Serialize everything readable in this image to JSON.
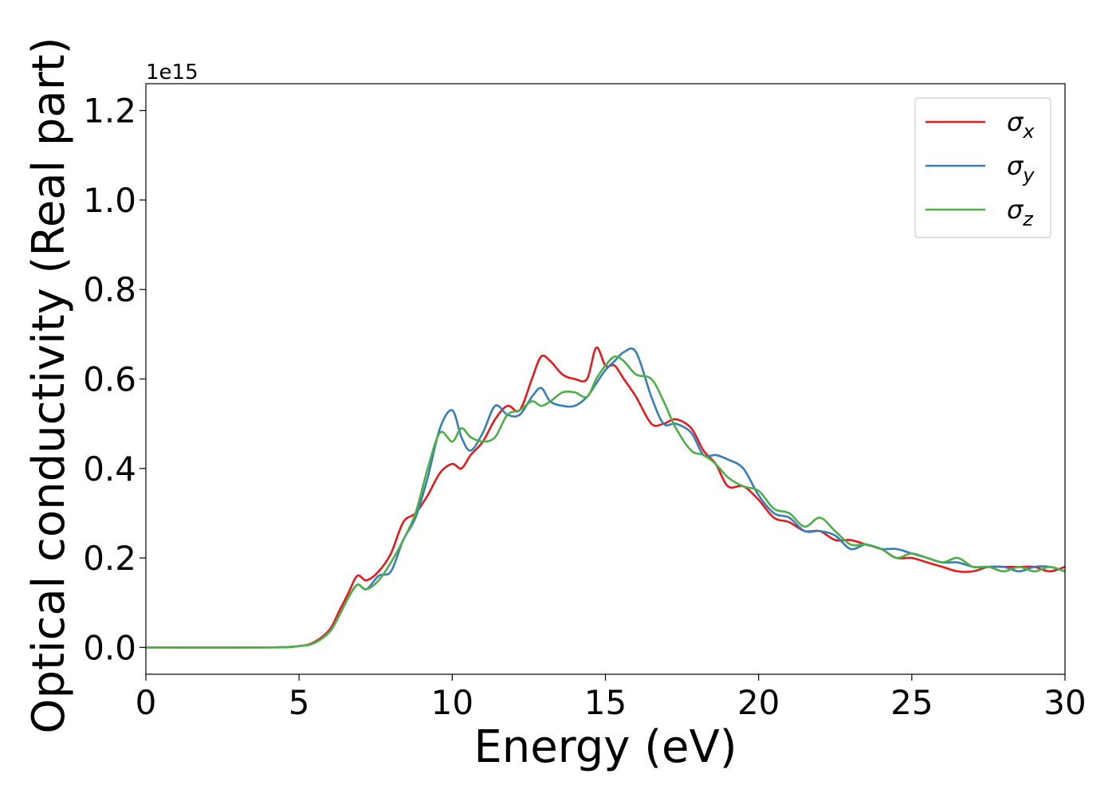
{
  "chart_data": {
    "type": "line",
    "xlabel": "Energy (eV)",
    "ylabel": "Optical conductivity (Real part)",
    "y_offset_label": "1e15",
    "xlim": [
      0,
      30
    ],
    "ylim": [
      -0.06,
      1.26
    ],
    "x_ticks": [
      0,
      5,
      10,
      15,
      20,
      25,
      30
    ],
    "y_ticks": [
      0.0,
      0.2,
      0.4,
      0.6,
      0.8,
      1.0,
      1.2
    ],
    "x_tick_labels": [
      "0",
      "5",
      "10",
      "15",
      "20",
      "25",
      "30"
    ],
    "y_tick_labels": [
      "0.0",
      "0.2",
      "0.4",
      "0.6",
      "0.8",
      "1.0",
      "1.2"
    ],
    "grid": false,
    "legend_position": "top-right",
    "series": [
      {
        "name": "σx",
        "legend_base": "σ",
        "legend_sub": "x",
        "color": "#e41a1c",
        "x": [
          0,
          4,
          5,
          5.5,
          6,
          6.3,
          6.6,
          6.9,
          7.2,
          7.6,
          8,
          8.4,
          8.8,
          9.2,
          9.6,
          10,
          10.3,
          10.6,
          11,
          11.4,
          11.8,
          12.2,
          12.6,
          12.9,
          13.2,
          13.6,
          14,
          14.4,
          14.7,
          15,
          15.3,
          15.6,
          16,
          16.5,
          16.9,
          17.3,
          17.8,
          18.2,
          18.6,
          19,
          19.5,
          20,
          20.5,
          21,
          21.5,
          22,
          22.5,
          23,
          23.5,
          24,
          24.5,
          25,
          25.5,
          26,
          26.5,
          27,
          27.5,
          28,
          28.5,
          29,
          29.5,
          30
        ],
        "y": [
          0.0,
          0.0,
          0.003,
          0.012,
          0.04,
          0.08,
          0.12,
          0.16,
          0.15,
          0.17,
          0.21,
          0.28,
          0.3,
          0.34,
          0.39,
          0.41,
          0.4,
          0.43,
          0.46,
          0.51,
          0.54,
          0.53,
          0.6,
          0.65,
          0.64,
          0.61,
          0.6,
          0.6,
          0.67,
          0.63,
          0.63,
          0.6,
          0.56,
          0.5,
          0.5,
          0.51,
          0.49,
          0.44,
          0.41,
          0.36,
          0.36,
          0.33,
          0.29,
          0.28,
          0.26,
          0.26,
          0.24,
          0.24,
          0.23,
          0.22,
          0.2,
          0.2,
          0.19,
          0.18,
          0.17,
          0.17,
          0.18,
          0.18,
          0.18,
          0.18,
          0.17,
          0.18
        ]
      },
      {
        "name": "σy",
        "legend_base": "σ",
        "legend_sub": "y",
        "color": "#377eb8",
        "x": [
          0,
          4,
          5,
          5.5,
          6,
          6.3,
          6.6,
          6.9,
          7.2,
          7.6,
          8,
          8.4,
          8.8,
          9.2,
          9.6,
          10,
          10.3,
          10.6,
          11,
          11.4,
          11.8,
          12.2,
          12.6,
          12.9,
          13.2,
          13.6,
          14,
          14.4,
          14.7,
          15,
          15.3,
          15.6,
          16,
          16.5,
          16.9,
          17.3,
          17.8,
          18.2,
          18.6,
          19,
          19.5,
          20,
          20.5,
          21,
          21.5,
          22,
          22.5,
          23,
          23.5,
          24,
          24.5,
          25,
          25.5,
          26,
          26.5,
          27,
          27.5,
          28,
          28.5,
          29,
          29.5,
          30
        ],
        "y": [
          0.0,
          0.0,
          0.003,
          0.01,
          0.035,
          0.07,
          0.11,
          0.14,
          0.13,
          0.16,
          0.17,
          0.24,
          0.29,
          0.38,
          0.49,
          0.53,
          0.47,
          0.44,
          0.48,
          0.54,
          0.52,
          0.52,
          0.56,
          0.58,
          0.55,
          0.54,
          0.54,
          0.56,
          0.59,
          0.62,
          0.64,
          0.66,
          0.66,
          0.56,
          0.5,
          0.5,
          0.48,
          0.43,
          0.43,
          0.42,
          0.4,
          0.34,
          0.3,
          0.29,
          0.26,
          0.26,
          0.25,
          0.22,
          0.23,
          0.22,
          0.22,
          0.21,
          0.2,
          0.19,
          0.19,
          0.18,
          0.18,
          0.18,
          0.17,
          0.18,
          0.18,
          0.17
        ]
      },
      {
        "name": "σz",
        "legend_base": "σ",
        "legend_sub": "z",
        "color": "#4daf4a",
        "x": [
          0,
          4,
          5,
          5.5,
          6,
          6.3,
          6.6,
          6.9,
          7.2,
          7.6,
          8,
          8.4,
          8.8,
          9.2,
          9.6,
          10,
          10.3,
          10.6,
          11,
          11.4,
          11.8,
          12.2,
          12.6,
          12.9,
          13.2,
          13.6,
          14,
          14.4,
          14.7,
          15,
          15.3,
          15.6,
          16,
          16.5,
          16.9,
          17.3,
          17.8,
          18.2,
          18.6,
          19,
          19.5,
          20,
          20.5,
          21,
          21.5,
          22,
          22.5,
          23,
          23.5,
          24,
          24.5,
          25,
          25.5,
          26,
          26.5,
          27,
          27.5,
          28,
          28.5,
          29,
          29.5,
          30
        ],
        "y": [
          0.0,
          0.0,
          0.003,
          0.01,
          0.035,
          0.07,
          0.11,
          0.14,
          0.13,
          0.15,
          0.19,
          0.24,
          0.3,
          0.4,
          0.48,
          0.46,
          0.49,
          0.47,
          0.46,
          0.47,
          0.52,
          0.53,
          0.55,
          0.54,
          0.55,
          0.57,
          0.57,
          0.56,
          0.6,
          0.63,
          0.65,
          0.64,
          0.61,
          0.6,
          0.55,
          0.49,
          0.44,
          0.43,
          0.41,
          0.38,
          0.36,
          0.35,
          0.31,
          0.3,
          0.27,
          0.29,
          0.26,
          0.23,
          0.23,
          0.22,
          0.2,
          0.21,
          0.2,
          0.19,
          0.2,
          0.18,
          0.18,
          0.17,
          0.18,
          0.17,
          0.18,
          0.17
        ]
      }
    ]
  }
}
